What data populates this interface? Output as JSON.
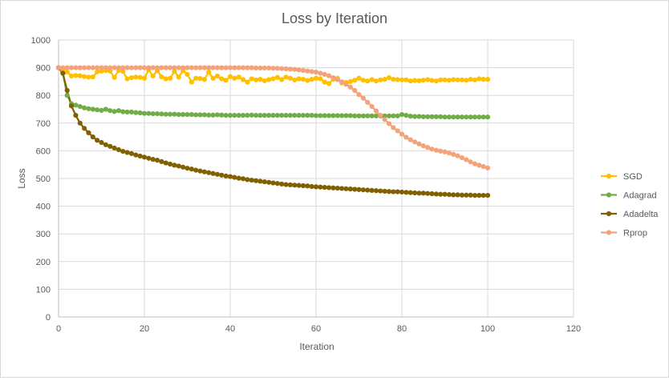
{
  "chart_data": {
    "type": "line",
    "title": "Loss by Iteration",
    "xlabel": "Iteration",
    "ylabel": "Loss",
    "xlim": [
      0,
      120
    ],
    "ylim": [
      0,
      1000
    ],
    "x_ticks": [
      0,
      20,
      40,
      60,
      80,
      100,
      120
    ],
    "y_ticks": [
      0,
      100,
      200,
      300,
      400,
      500,
      600,
      700,
      800,
      900,
      1000
    ],
    "grid": true,
    "legend_position": "right",
    "x": [
      0,
      1,
      2,
      3,
      4,
      5,
      6,
      7,
      8,
      9,
      10,
      11,
      12,
      13,
      14,
      15,
      16,
      17,
      18,
      19,
      20,
      21,
      22,
      23,
      24,
      25,
      26,
      27,
      28,
      29,
      30,
      31,
      32,
      33,
      34,
      35,
      36,
      37,
      38,
      39,
      40,
      41,
      42,
      43,
      44,
      45,
      46,
      47,
      48,
      49,
      50,
      51,
      52,
      53,
      54,
      55,
      56,
      57,
      58,
      59,
      60,
      61,
      62,
      63,
      64,
      65,
      66,
      67,
      68,
      69,
      70,
      71,
      72,
      73,
      74,
      75,
      76,
      77,
      78,
      79,
      80,
      81,
      82,
      83,
      84,
      85,
      86,
      87,
      88,
      89,
      90,
      91,
      92,
      93,
      94,
      95,
      96,
      97,
      98,
      99,
      100
    ],
    "series": [
      {
        "name": "SGD",
        "color": "#FFC000",
        "values": [
          900,
          893,
          885,
          870,
          872,
          871,
          868,
          866,
          867,
          885,
          888,
          890,
          888,
          865,
          890,
          887,
          860,
          864,
          866,
          865,
          862,
          892,
          870,
          890,
          867,
          860,
          862,
          887,
          866,
          890,
          876,
          848,
          862,
          861,
          858,
          884,
          862,
          870,
          860,
          855,
          868,
          862,
          866,
          857,
          848,
          860,
          856,
          858,
          853,
          857,
          860,
          865,
          857,
          866,
          862,
          856,
          860,
          858,
          854,
          858,
          862,
          860,
          848,
          843,
          858,
          862,
          845,
          847,
          850,
          855,
          862,
          855,
          852,
          857,
          852,
          856,
          858,
          864,
          858,
          857,
          856,
          856,
          852,
          854,
          853,
          855,
          857,
          854,
          852,
          856,
          856,
          855,
          857,
          856,
          856,
          855,
          858,
          856,
          860,
          858,
          858
        ]
      },
      {
        "name": "Adagrad",
        "color": "#70AD47",
        "values": [
          900,
          880,
          800,
          770,
          765,
          760,
          755,
          752,
          750,
          748,
          746,
          750,
          745,
          742,
          745,
          741,
          740,
          740,
          738,
          737,
          735,
          735,
          734,
          734,
          733,
          732,
          732,
          732,
          731,
          731,
          731,
          731,
          730,
          730,
          730,
          729,
          729,
          730,
          729,
          728,
          728,
          728,
          728,
          728,
          728,
          729,
          728,
          728,
          728,
          728,
          728,
          728,
          728,
          728,
          728,
          728,
          728,
          728,
          728,
          728,
          727,
          727,
          727,
          727,
          727,
          727,
          727,
          727,
          727,
          726,
          726,
          726,
          726,
          726,
          726,
          726,
          726,
          726,
          726,
          726,
          731,
          728,
          725,
          724,
          724,
          723,
          723,
          723,
          723,
          723,
          722,
          722,
          722,
          722,
          722,
          722,
          722,
          722,
          722,
          722,
          722
        ]
      },
      {
        "name": "Adadelta",
        "color": "#806000",
        "values": [
          900,
          880,
          818,
          762,
          728,
          700,
          681,
          665,
          650,
          638,
          630,
          622,
          616,
          610,
          604,
          598,
          594,
          590,
          585,
          581,
          577,
          573,
          569,
          566,
          561,
          556,
          552,
          548,
          545,
          541,
          537,
          534,
          530,
          527,
          524,
          521,
          518,
          515,
          512,
          509,
          507,
          504,
          501,
          499,
          496,
          494,
          492,
          490,
          488,
          486,
          484,
          482,
          480,
          478,
          477,
          476,
          475,
          474,
          473,
          471,
          470,
          469,
          468,
          467,
          466,
          465,
          464,
          463,
          462,
          461,
          460,
          459,
          458,
          457,
          456,
          455,
          454,
          453,
          452,
          452,
          451,
          450,
          449,
          448,
          447,
          447,
          446,
          445,
          444,
          443,
          443,
          442,
          441,
          441,
          440,
          440,
          440,
          439,
          439,
          439,
          439
        ]
      },
      {
        "name": "Rprop",
        "color": "#F4A27A",
        "values": [
          900,
          900,
          900,
          900,
          900,
          900,
          900,
          900,
          900,
          900,
          900,
          900,
          900,
          900,
          900,
          900,
          900,
          900,
          900,
          900,
          900,
          900,
          900,
          900,
          900,
          900,
          900,
          900,
          900,
          900,
          900,
          900,
          900,
          900,
          900,
          900,
          900,
          900,
          900,
          900,
          900,
          900,
          900,
          900,
          900,
          900,
          899,
          899,
          899,
          899,
          898,
          898,
          897,
          896,
          895,
          894,
          892,
          890,
          888,
          886,
          884,
          880,
          876,
          871,
          864,
          857,
          849,
          840,
          830,
          818,
          803,
          790,
          775,
          760,
          744,
          728,
          713,
          698,
          684,
          672,
          660,
          649,
          640,
          632,
          625,
          618,
          612,
          606,
          602,
          599,
          596,
          592,
          587,
          582,
          575,
          568,
          560,
          553,
          548,
          543,
          538
        ]
      }
    ]
  }
}
